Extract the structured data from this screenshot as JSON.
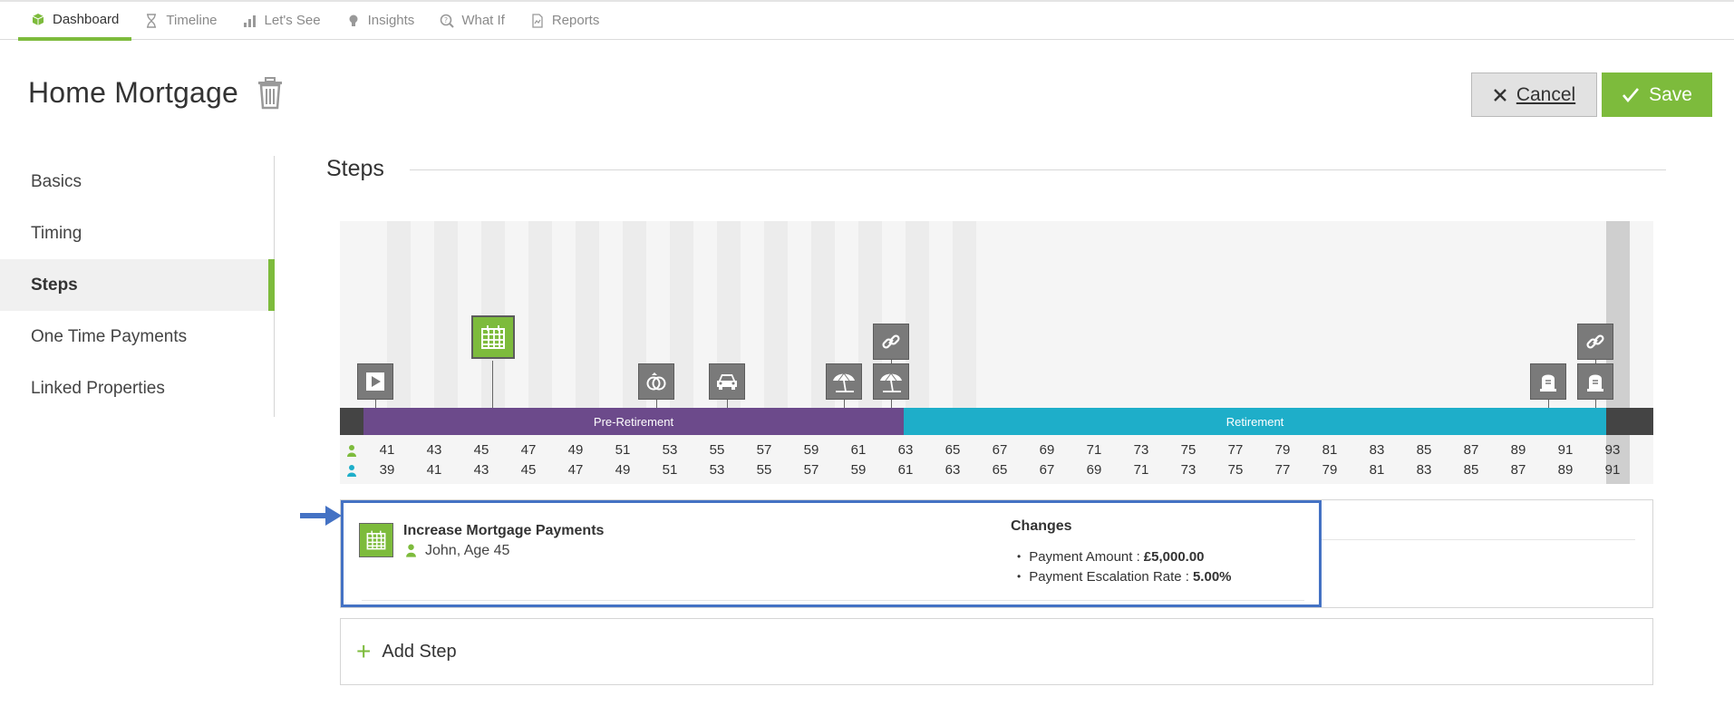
{
  "nav": {
    "tabs": [
      {
        "label": "Dashboard",
        "icon": "cube-icon",
        "active": true
      },
      {
        "label": "Timeline",
        "icon": "hourglass-icon"
      },
      {
        "label": "Let's See",
        "icon": "bar-chart-icon"
      },
      {
        "label": "Insights",
        "icon": "lightbulb-icon"
      },
      {
        "label": "What If",
        "icon": "what-if-icon"
      },
      {
        "label": "Reports",
        "icon": "report-document-icon"
      }
    ]
  },
  "header": {
    "title": "Home Mortgage",
    "cancel_label": "Cancel",
    "save_label": "Save"
  },
  "sidebar": {
    "items": [
      {
        "label": "Basics"
      },
      {
        "label": "Timing"
      },
      {
        "label": "Steps",
        "active": true
      },
      {
        "label": "One Time Payments"
      },
      {
        "label": "Linked Properties"
      }
    ]
  },
  "steps_section": {
    "heading": "Steps"
  },
  "timeline": {
    "phases": [
      {
        "label": "Pre-Retirement",
        "color": "#6c4a8b"
      },
      {
        "label": "Retirement",
        "color": "#1eaec9"
      }
    ],
    "person1_color": "#7dbb3c",
    "person2_color": "#1eaec9",
    "person1_ages": [
      "41",
      "43",
      "45",
      "47",
      "49",
      "51",
      "53",
      "55",
      "57",
      "59",
      "61",
      "63",
      "65",
      "67",
      "69",
      "71",
      "73",
      "75",
      "77",
      "79",
      "81",
      "83",
      "85",
      "87",
      "89",
      "91",
      "93"
    ],
    "person2_ages": [
      "39",
      "41",
      "43",
      "45",
      "47",
      "49",
      "51",
      "53",
      "55",
      "57",
      "59",
      "61",
      "63",
      "65",
      "67",
      "69",
      "71",
      "73",
      "75",
      "77",
      "79",
      "81",
      "83",
      "85",
      "87",
      "89",
      "91"
    ],
    "events": [
      {
        "icon": "play-icon"
      },
      {
        "icon": "mortgage-step-icon"
      },
      {
        "icon": "rings-icon"
      },
      {
        "icon": "car-icon"
      },
      {
        "icon": "umbrella-icon"
      },
      {
        "icon": "umbrella-icon"
      },
      {
        "icon": "link-icon"
      },
      {
        "icon": "gravestone-icon"
      },
      {
        "icon": "gravestone-icon"
      },
      {
        "icon": "link-icon"
      }
    ]
  },
  "step": {
    "name": "Increase Mortgage Payments",
    "person": "John, Age 45",
    "changes_heading": "Changes",
    "changes": [
      {
        "label": "Payment Amount :",
        "value": "£5,000.00"
      },
      {
        "label": "Payment Escalation Rate :",
        "value": "5.00%"
      }
    ]
  },
  "add_step": {
    "label": "Add Step"
  },
  "colors": {
    "accent": "#7dbb3c",
    "highlight_border": "#4472c4"
  }
}
